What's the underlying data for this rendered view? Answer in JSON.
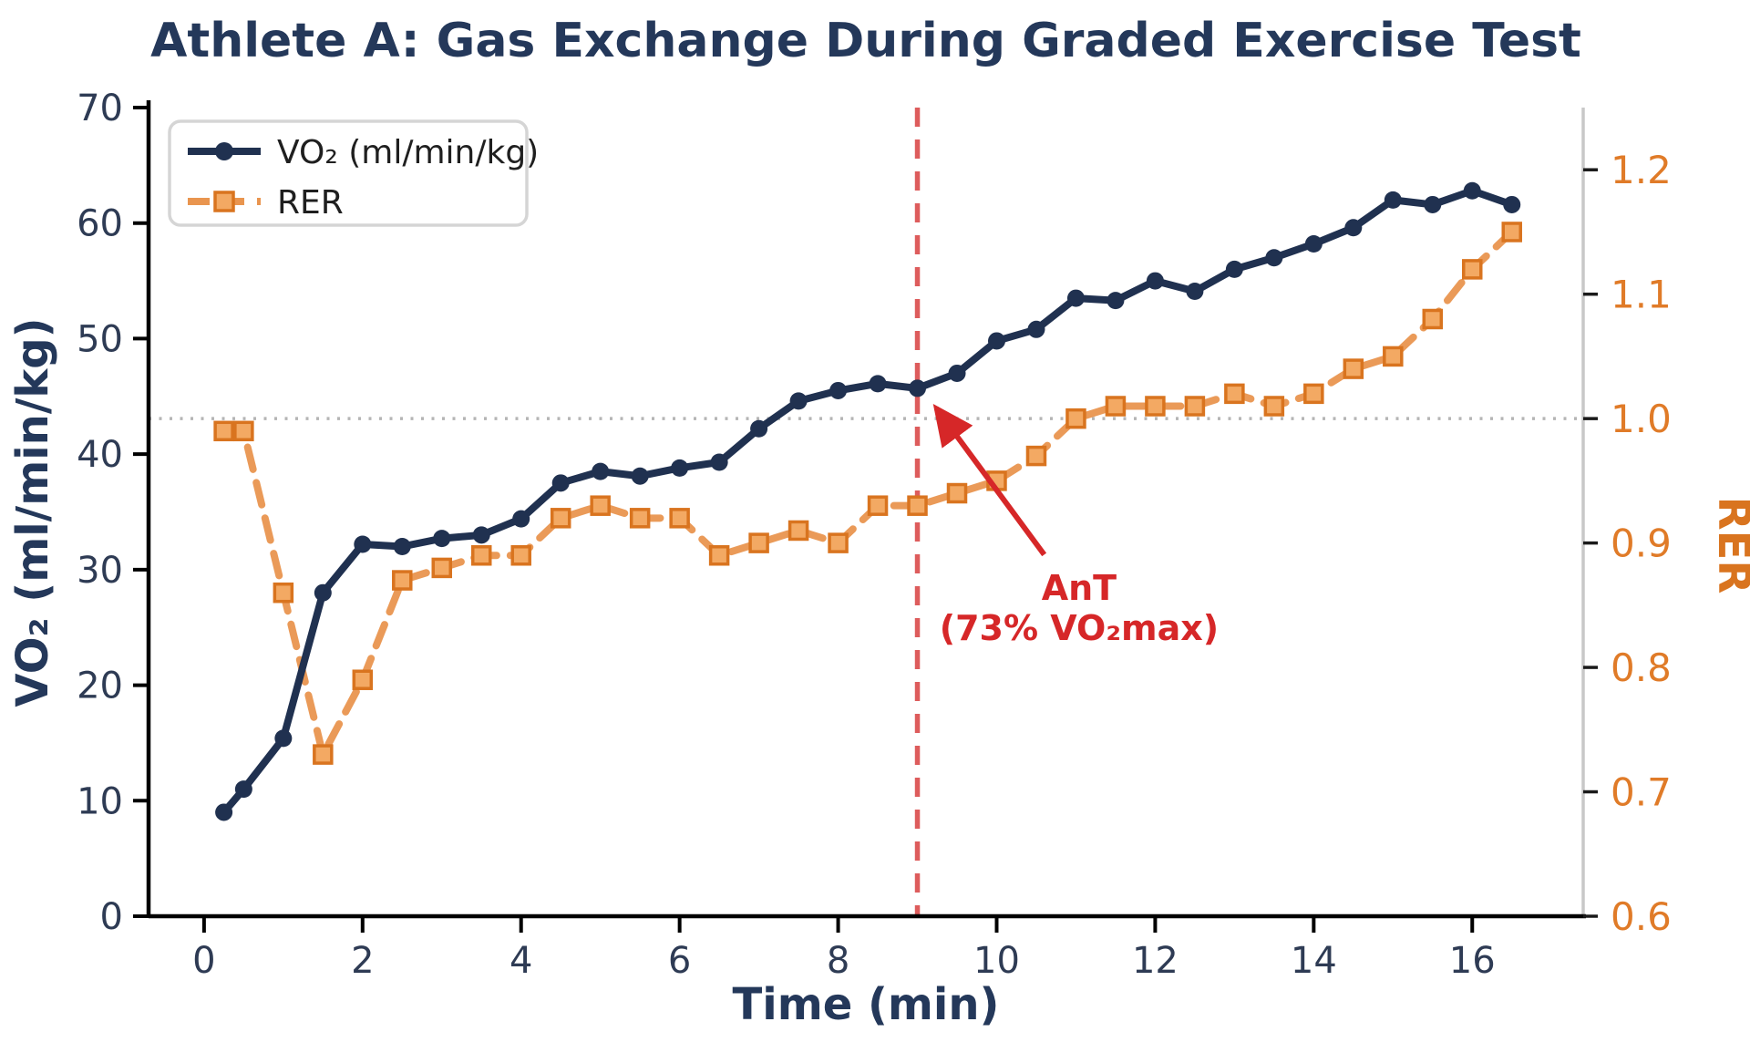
{
  "page": {
    "background": "#ffffff"
  },
  "chart_data": {
    "type": "line",
    "title": "Athlete A: Gas Exchange During Graded Exercise Test",
    "xlabel": "Time (min)",
    "ylabel_left": "VO₂ (ml/min/kg)",
    "ylabel_right": "RER",
    "x": [
      0.25,
      0.5,
      1.0,
      1.5,
      2.0,
      2.5,
      3.0,
      3.5,
      4.0,
      4.5,
      5.0,
      5.5,
      6.0,
      6.5,
      7.0,
      7.5,
      8.0,
      8.5,
      9.0,
      9.5,
      10.0,
      10.5,
      11.0,
      11.5,
      12.0,
      12.5,
      13.0,
      13.5,
      14.0,
      14.5,
      15.0,
      15.5,
      16.0,
      16.5
    ],
    "series": [
      {
        "name": "VO₂ (ml/min/kg)",
        "axis": "left",
        "linestyle": "solid",
        "marker": "circle",
        "color": "#203150",
        "values": [
          9.0,
          11.0,
          15.4,
          28.0,
          32.2,
          32.0,
          32.7,
          33.0,
          34.4,
          37.5,
          38.5,
          38.1,
          38.8,
          39.3,
          42.2,
          44.6,
          45.5,
          46.1,
          45.7,
          47.0,
          49.8,
          50.8,
          53.5,
          53.3,
          55.0,
          54.1,
          56.0,
          57.0,
          58.2,
          59.6,
          62.0,
          61.6,
          62.8,
          61.6
        ]
      },
      {
        "name": "RER",
        "axis": "right",
        "linestyle": "dashed",
        "marker": "square",
        "color": "#e9954f",
        "marker_edge": "#d9741f",
        "marker_fill": "#f3a963",
        "values": [
          0.99,
          0.99,
          0.86,
          0.73,
          0.79,
          0.87,
          0.88,
          0.89,
          0.89,
          0.92,
          0.93,
          0.92,
          0.92,
          0.89,
          0.9,
          0.91,
          0.9,
          0.93,
          0.93,
          0.94,
          0.95,
          0.97,
          1.0,
          1.01,
          1.01,
          1.01,
          1.02,
          1.01,
          1.02,
          1.04,
          1.05,
          1.08,
          1.12,
          1.15
        ]
      }
    ],
    "xlim": [
      -0.7,
      17.4
    ],
    "ylim_left": [
      0,
      70
    ],
    "ylim_right": [
      0.6,
      1.25
    ],
    "xticks": {
      "values": [
        0,
        2,
        4,
        6,
        8,
        10,
        12,
        14,
        16
      ],
      "labels": [
        "0",
        "2",
        "4",
        "6",
        "8",
        "10",
        "12",
        "14",
        "16"
      ]
    },
    "yticks_left": {
      "values": [
        0,
        10,
        20,
        30,
        40,
        50,
        60,
        70
      ],
      "labels": [
        "0",
        "10",
        "20",
        "30",
        "40",
        "50",
        "60",
        "70"
      ]
    },
    "yticks_right": {
      "values": [
        0.6,
        0.7,
        0.8,
        0.9,
        1.0,
        1.1,
        1.2
      ],
      "labels": [
        "0.6",
        "0.7",
        "0.8",
        "0.9",
        "1.0",
        "1.1",
        "1.2"
      ]
    },
    "reference_lines": [
      {
        "name": "rer-1.0-line",
        "axis": "right",
        "value": 1.0,
        "style": "dotted",
        "color": "#b5b5b5"
      },
      {
        "name": "ant-time-line",
        "axis": "x",
        "value": 9.0,
        "style": "dashed",
        "color": "#dd5c5c"
      }
    ],
    "annotation": {
      "line1": "AnT",
      "line2": "(73% VO₂max)",
      "color": "#d62728",
      "arrow_tip": {
        "t": 9.17,
        "vo2": 44.6
      },
      "arrow_tail": {
        "t": 10.6,
        "vo2": 31.3
      },
      "text_center": {
        "t": 11.04,
        "vo2_line1": 27.4,
        "vo2_line2": 23.9
      }
    },
    "legend": {
      "position": "upper-left",
      "entries": [
        "VO₂ (ml/min/kg)",
        "RER"
      ]
    },
    "grid": "off",
    "colors": {
      "spine": "#000000",
      "right_spine": "#c8c8c8",
      "navy": "#203150",
      "orange": "#e9954f",
      "orange_dark": "#d9741f",
      "red": "#d62728",
      "red_light": "#dd5c5c"
    }
  }
}
